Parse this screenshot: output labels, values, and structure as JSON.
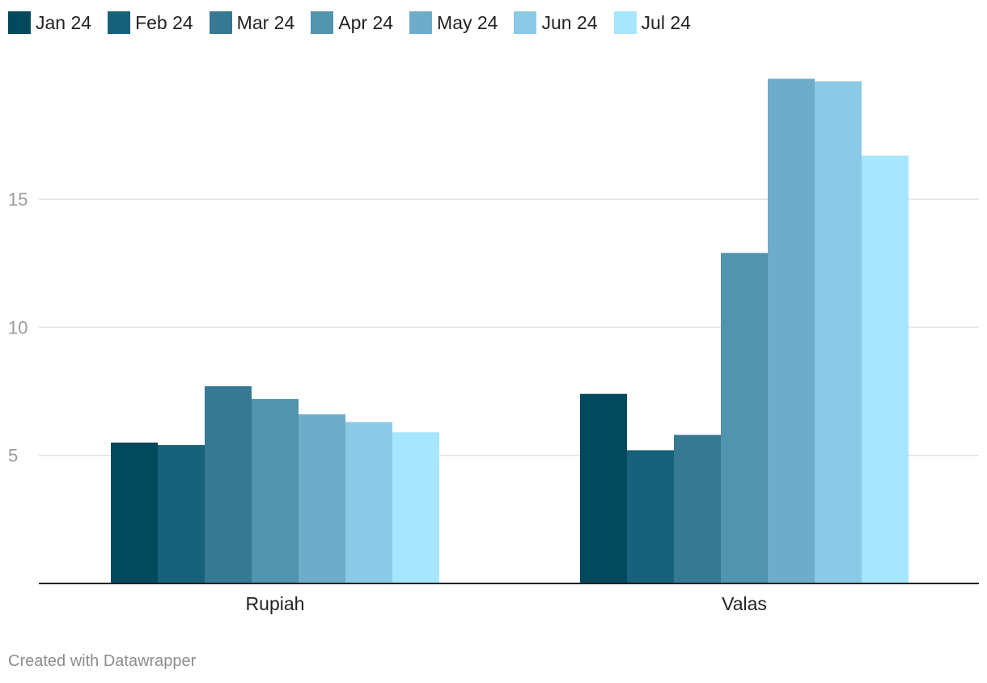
{
  "chart_data": {
    "type": "bar",
    "categories": [
      "Rupiah",
      "Valas"
    ],
    "series": [
      {
        "name": "Jan 24",
        "color": "#03495e",
        "values": [
          5.5,
          7.4
        ]
      },
      {
        "name": "Feb 24",
        "color": "#17617a",
        "values": [
          5.4,
          5.2
        ]
      },
      {
        "name": "Mar 24",
        "color": "#377993",
        "values": [
          7.7,
          5.8
        ]
      },
      {
        "name": "Apr 24",
        "color": "#5293ae",
        "values": [
          7.2,
          12.9
        ]
      },
      {
        "name": "May 24",
        "color": "#6eacc9",
        "values": [
          6.6,
          19.7
        ]
      },
      {
        "name": "Jun 24",
        "color": "#8bcae6",
        "values": [
          6.3,
          19.6
        ]
      },
      {
        "name": "Jul 24",
        "color": "#a6e6ff",
        "values": [
          5.9,
          16.7
        ]
      }
    ],
    "y_ticks": [
      5,
      10,
      15
    ],
    "ylim": [
      0,
      20.5
    ],
    "grid": true,
    "legend": "top-left"
  },
  "footer": {
    "credit": "Created with Datawrapper"
  }
}
